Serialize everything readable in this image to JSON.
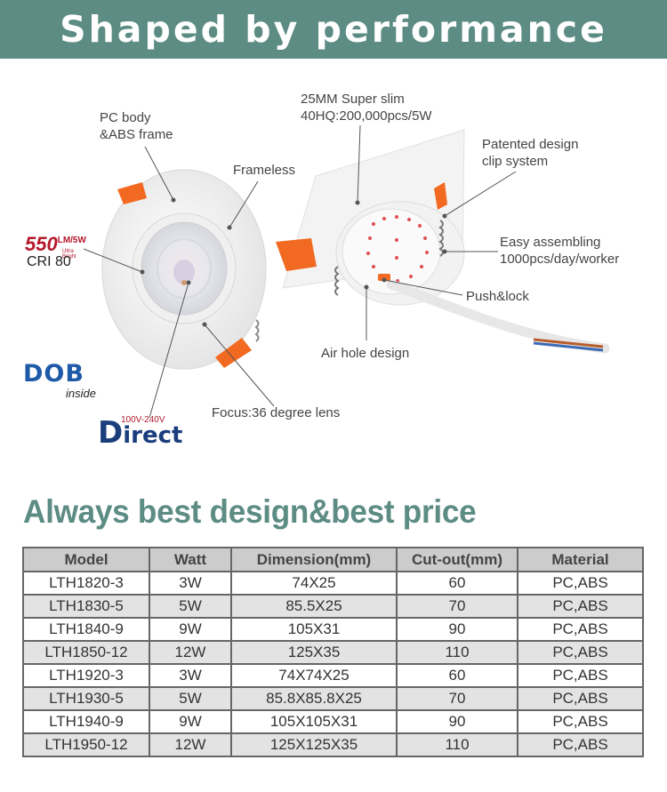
{
  "banner": {
    "title": "Shaped by performance"
  },
  "callouts": {
    "pc_body": "PC body\n&ABS frame",
    "frameless": "Frameless",
    "slim": "25MM Super slim\n40HQ:200,000pcs/5W",
    "patented": "Patented design\nclip system",
    "assembling": "Easy assembling\n1000pcs/day/worker",
    "push_lock": "Push&lock",
    "air_hole": "Air hole design",
    "focus": "Focus:36 degree lens"
  },
  "badges": {
    "lumen_value": "550",
    "lumen_unit": "LM/5W",
    "lumen_sub": "Ultra Bright",
    "cri": "CRI 80",
    "dob": "DOB",
    "dob_sub": "inside",
    "direct_voltage": "100V-240V",
    "direct_first": "D",
    "direct_rest": "irect"
  },
  "tagline": "Always best design&best price",
  "table": {
    "headers": [
      "Model",
      "Watt",
      "Dimension(mm)",
      "Cut-out(mm)",
      "Material"
    ],
    "rows": [
      [
        "LTH1820-3",
        "3W",
        "74X25",
        "60",
        "PC,ABS"
      ],
      [
        "LTH1830-5",
        "5W",
        "85.5X25",
        "70",
        "PC,ABS"
      ],
      [
        "LTH1840-9",
        "9W",
        "105X31",
        "90",
        "PC,ABS"
      ],
      [
        "LTH1850-12",
        "12W",
        "125X35",
        "110",
        "PC,ABS"
      ],
      [
        "LTH1920-3",
        "3W",
        "74X74X25",
        "60",
        "PC,ABS"
      ],
      [
        "LTH1930-5",
        "5W",
        "85.8X85.8X25",
        "70",
        "PC,ABS"
      ],
      [
        "LTH1940-9",
        "9W",
        "105X105X31",
        "90",
        "PC,ABS"
      ],
      [
        "LTH1950-12",
        "12W",
        "125X125X35",
        "110",
        "PC,ABS"
      ]
    ]
  },
  "colors": {
    "brand_teal": "#5c8c84",
    "clip_orange": "#f26a21",
    "lumen_red": "#b3192b",
    "dob_blue": "#1e5aa8"
  }
}
